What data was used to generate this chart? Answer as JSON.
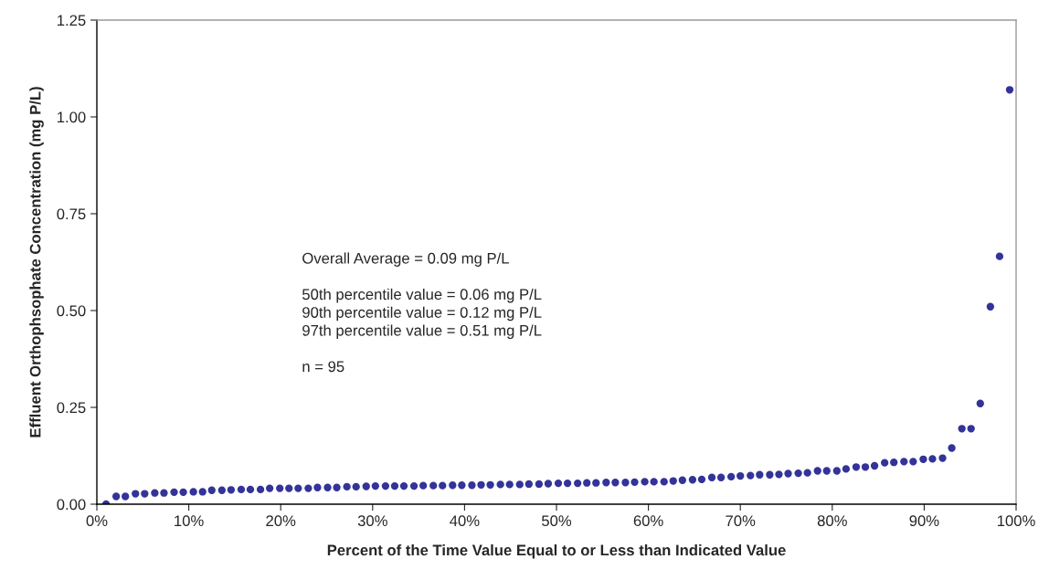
{
  "chart_data": {
    "type": "scatter",
    "xlabel": "Percent of the Time Value Equal to or Less than Indicated Value",
    "ylabel": "Effluent Orthophsophate Concentration (mg P/L)",
    "annotations": [
      "Overall Average = 0.09 mg P/L",
      "50th percentile value = 0.06 mg P/L\n90th percentile value = 0.12 mg P/L\n97th percentile value = 0.51 mg P/L",
      "n = 95"
    ],
    "x": [
      1.0,
      2.1,
      3.1,
      4.2,
      5.2,
      6.3,
      7.3,
      8.4,
      9.4,
      10.5,
      11.5,
      12.5,
      13.6,
      14.6,
      15.7,
      16.7,
      17.8,
      18.8,
      19.9,
      20.9,
      21.9,
      23.0,
      24.0,
      25.1,
      26.1,
      27.2,
      28.2,
      29.3,
      30.3,
      31.4,
      32.4,
      33.4,
      34.5,
      35.5,
      36.6,
      37.6,
      38.7,
      39.7,
      40.8,
      41.8,
      42.8,
      43.9,
      44.9,
      46.0,
      47.0,
      48.1,
      49.1,
      50.2,
      51.2,
      52.3,
      53.3,
      54.3,
      55.4,
      56.4,
      57.5,
      58.5,
      59.6,
      60.6,
      61.7,
      62.7,
      63.7,
      64.8,
      65.8,
      66.9,
      67.9,
      69.0,
      70.0,
      71.1,
      72.1,
      73.2,
      74.2,
      75.2,
      76.3,
      77.3,
      78.4,
      79.4,
      80.5,
      81.5,
      82.6,
      83.6,
      84.6,
      85.7,
      86.7,
      87.8,
      88.8,
      89.9,
      90.9,
      92.0,
      93.0,
      94.1,
      95.1,
      96.1,
      97.2,
      98.2,
      99.3
    ],
    "values": [
      0.0,
      0.02,
      0.02,
      0.027,
      0.027,
      0.029,
      0.029,
      0.031,
      0.031,
      0.032,
      0.032,
      0.036,
      0.036,
      0.037,
      0.038,
      0.038,
      0.038,
      0.041,
      0.041,
      0.041,
      0.041,
      0.041,
      0.043,
      0.043,
      0.043,
      0.045,
      0.045,
      0.046,
      0.047,
      0.047,
      0.047,
      0.047,
      0.047,
      0.048,
      0.048,
      0.048,
      0.049,
      0.049,
      0.049,
      0.05,
      0.05,
      0.051,
      0.051,
      0.051,
      0.052,
      0.052,
      0.053,
      0.054,
      0.054,
      0.054,
      0.055,
      0.055,
      0.056,
      0.056,
      0.056,
      0.057,
      0.058,
      0.058,
      0.058,
      0.06,
      0.062,
      0.063,
      0.064,
      0.069,
      0.069,
      0.071,
      0.073,
      0.074,
      0.076,
      0.076,
      0.077,
      0.079,
      0.08,
      0.081,
      0.086,
      0.086,
      0.086,
      0.091,
      0.096,
      0.096,
      0.099,
      0.107,
      0.108,
      0.11,
      0.11,
      0.116,
      0.117,
      0.119,
      0.145,
      0.195,
      0.195,
      0.26,
      0.51,
      0.64,
      1.07
    ],
    "color": "#333399",
    "marker": "circle",
    "xlim": [
      0,
      100
    ],
    "xticks": [
      {
        "value": 0,
        "label": "0%"
      },
      {
        "value": 10,
        "label": "10%"
      },
      {
        "value": 20,
        "label": "20%"
      },
      {
        "value": 30,
        "label": "30%"
      },
      {
        "value": 40,
        "label": "40%"
      },
      {
        "value": 50,
        "label": "50%"
      },
      {
        "value": 60,
        "label": "60%"
      },
      {
        "value": 70,
        "label": "70%"
      },
      {
        "value": 80,
        "label": "80%"
      },
      {
        "value": 90,
        "label": "90%"
      },
      {
        "value": 100,
        "label": "100%"
      }
    ],
    "ylim": [
      0,
      1.25
    ],
    "yticks": [
      {
        "value": 0,
        "label": "0.00"
      },
      {
        "value": 0.25,
        "label": "0.25"
      },
      {
        "value": 0.5,
        "label": "0.50"
      },
      {
        "value": 0.75,
        "label": "0.75"
      },
      {
        "value": 1.0,
        "label": "1.00"
      },
      {
        "value": 1.25,
        "label": "1.25"
      }
    ],
    "grid": false
  }
}
